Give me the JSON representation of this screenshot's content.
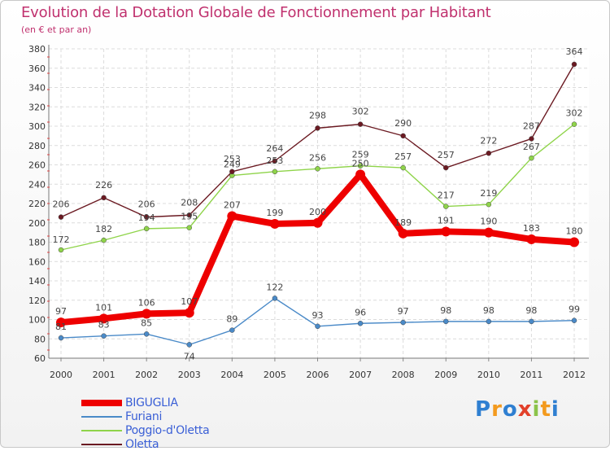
{
  "header": {
    "title": "Evolution de la Dotation Globale de Fonctionnement par Habitant",
    "subtitle": "(en € et par an)"
  },
  "chart_data": {
    "type": "line",
    "title": "Evolution de la Dotation Globale de Fonctionnement par Habitant",
    "subtitle": "(en € et par an)",
    "xlabel": "",
    "ylabel": "",
    "ylim": [
      60,
      380
    ],
    "yticks": [
      60,
      80,
      100,
      120,
      140,
      160,
      180,
      200,
      220,
      240,
      260,
      280,
      300,
      320,
      340,
      360,
      380
    ],
    "categories": [
      "2000",
      "2001",
      "2002",
      "2003",
      "2004",
      "2005",
      "2006",
      "2007",
      "2008",
      "2009",
      "2010",
      "2011",
      "2012"
    ],
    "grid": true,
    "legend_position": "bottom-left",
    "series": [
      {
        "name": "BIGUGLIA",
        "color": "#ee0000",
        "values": [
          97,
          101,
          106,
          107,
          207,
          199,
          200,
          250,
          189,
          191,
          190,
          183,
          180
        ]
      },
      {
        "name": "Furiani",
        "color": "#4a8ac8",
        "values": [
          81,
          83,
          85,
          74,
          89,
          122,
          93,
          96,
          97,
          98,
          98,
          98,
          99
        ]
      },
      {
        "name": "Poggio-d'Oletta",
        "color": "#8fd44a",
        "values": [
          172,
          182,
          194,
          195,
          249,
          253,
          256,
          259,
          257,
          217,
          219,
          267,
          302
        ]
      },
      {
        "name": "Oletta",
        "color": "#6b1a22",
        "values": [
          206,
          226,
          206,
          208,
          253,
          264,
          298,
          302,
          290,
          257,
          272,
          287,
          364
        ]
      }
    ]
  },
  "logo": {
    "letters": [
      "P",
      "r",
      "o",
      "x",
      "i",
      "t",
      "i"
    ],
    "colors": [
      "#2f7fd1",
      "#f39a1e",
      "#2f7fd1",
      "#e2402a",
      "#8bc34a",
      "#f39a1e",
      "#2f7fd1"
    ]
  }
}
